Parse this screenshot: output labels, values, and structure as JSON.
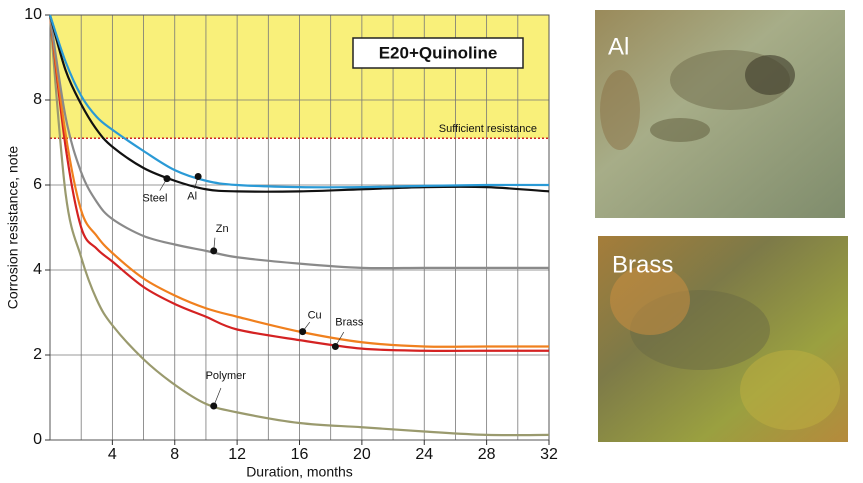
{
  "chart_data": {
    "type": "line",
    "xlabel": "Duration, months",
    "ylabel": "Corrosion resistance, note",
    "xlim": [
      0,
      32
    ],
    "ylim": [
      0,
      10
    ],
    "xticks": [
      4,
      8,
      12,
      16,
      20,
      24,
      28,
      32
    ],
    "yticks": [
      0,
      2,
      4,
      6,
      8,
      10
    ],
    "x_gridlines": [
      2,
      4,
      6,
      8,
      10,
      12,
      14,
      16,
      18,
      20,
      22,
      24,
      26,
      28,
      30
    ],
    "y_gridlines": [
      2,
      4,
      6,
      8
    ],
    "box_label": "E20+Quinoline",
    "threshold": {
      "value": 7.1,
      "label": "Sufficient resistance",
      "color": "#cc2222",
      "fill": "#f9f07a"
    },
    "x": [
      0,
      1,
      2,
      3,
      4,
      6,
      8,
      10,
      12,
      16,
      20,
      24,
      28,
      32
    ],
    "series": [
      {
        "name": "Al",
        "color": "#2a9ad6",
        "values": [
          10,
          8.9,
          8.1,
          7.6,
          7.3,
          6.8,
          6.35,
          6.1,
          6.0,
          5.95,
          5.95,
          5.98,
          6.0,
          6.0
        ],
        "label_point": {
          "x": 9.5,
          "y": 6.2
        }
      },
      {
        "name": "Steel",
        "color": "#111111",
        "values": [
          10,
          8.7,
          7.9,
          7.3,
          6.9,
          6.4,
          6.1,
          5.9,
          5.85,
          5.85,
          5.9,
          5.95,
          5.95,
          5.85
        ],
        "label_point": {
          "x": 7.5,
          "y": 6.15
        }
      },
      {
        "name": "Zn",
        "color": "#8a8a8a",
        "values": [
          10,
          7.6,
          6.3,
          5.6,
          5.2,
          4.8,
          4.6,
          4.45,
          4.3,
          4.15,
          4.05,
          4.05,
          4.05,
          4.05
        ],
        "label_point": {
          "x": 10.5,
          "y": 4.45
        }
      },
      {
        "name": "Cu",
        "color": "#f0801e",
        "values": [
          10,
          7.2,
          5.4,
          4.8,
          4.4,
          3.8,
          3.4,
          3.1,
          2.9,
          2.55,
          2.3,
          2.2,
          2.2,
          2.2
        ],
        "label_point": {
          "x": 16.2,
          "y": 2.55
        }
      },
      {
        "name": "Brass",
        "color": "#d42222",
        "values": [
          10,
          6.9,
          5.0,
          4.5,
          4.2,
          3.6,
          3.2,
          2.9,
          2.6,
          2.35,
          2.15,
          2.1,
          2.1,
          2.1
        ],
        "label_point": {
          "x": 18.3,
          "y": 2.2
        }
      },
      {
        "name": "Polymer",
        "color": "#9a9a6e",
        "values": [
          10,
          5.8,
          4.3,
          3.3,
          2.7,
          1.9,
          1.3,
          0.85,
          0.65,
          0.4,
          0.3,
          0.2,
          0.12,
          0.12
        ],
        "label_point": {
          "x": 10.5,
          "y": 0.8
        }
      }
    ],
    "photos": [
      {
        "label": "Al"
      },
      {
        "label": "Brass"
      }
    ]
  }
}
